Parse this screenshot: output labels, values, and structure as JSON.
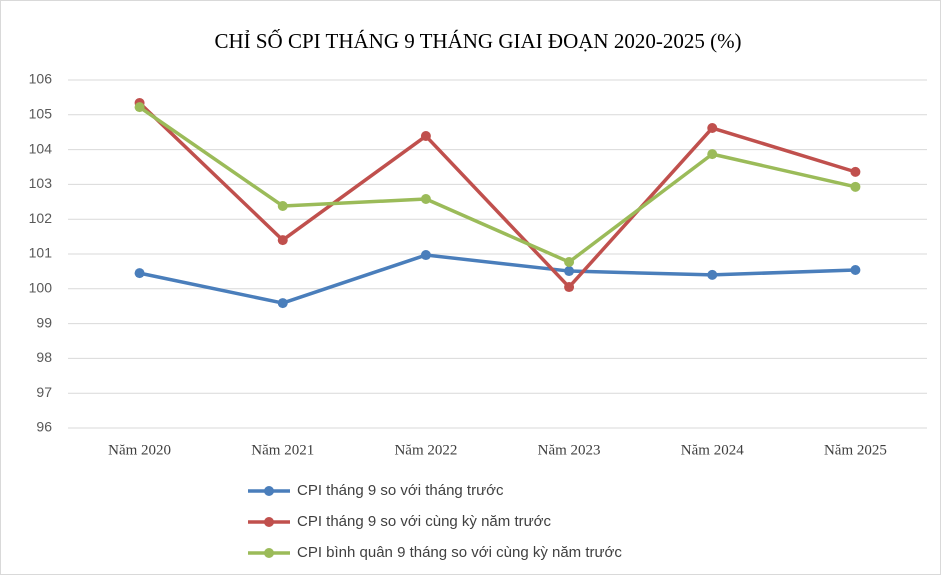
{
  "chart_data": {
    "type": "line",
    "title": "CHỈ SỐ CPI THÁNG  9 THÁNG  GIAI  ĐOẠN  2020-2025 (%)",
    "categories": [
      "Năm 2020",
      "Năm 2021",
      "Năm 2022",
      "Năm 2023",
      "Năm 2024",
      "Năm 2025"
    ],
    "series": [
      {
        "name": "CPI tháng 9 so với tháng trước",
        "color": "#4a7ebb",
        "values": [
          100.45,
          99.59,
          100.97,
          100.51,
          100.4,
          100.54
        ]
      },
      {
        "name": "CPI tháng 9 so với cùng kỳ năm trước",
        "color": "#c0504d",
        "values": [
          105.34,
          101.4,
          104.39,
          100.05,
          104.62,
          103.36
        ]
      },
      {
        "name": "CPI bình quân 9 tháng so với cùng kỳ năm trước",
        "color": "#9bbb59",
        "values": [
          105.22,
          102.38,
          102.58,
          100.77,
          103.87,
          102.93
        ]
      }
    ],
    "ylim": [
      96,
      106
    ],
    "yticks": [
      96,
      97,
      98,
      99,
      100,
      101,
      102,
      103,
      104,
      105,
      106
    ],
    "grid": true,
    "legend": "bottom"
  }
}
